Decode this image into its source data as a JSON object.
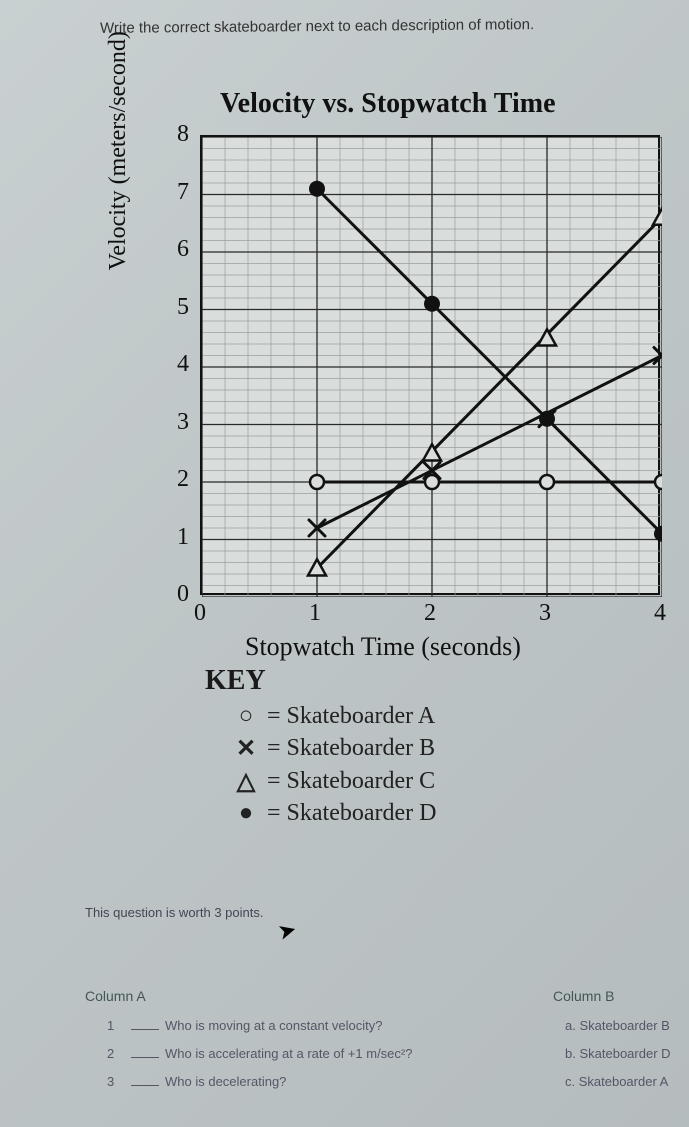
{
  "instruction": "Write the correct skateboarder next to each description of motion.",
  "chart": {
    "title": "Velocity vs. Stopwatch Time",
    "ylabel": "Velocity (meters/second)",
    "xlabel": "Stopwatch Time (seconds)",
    "xlim": [
      0,
      4
    ],
    "ylim": [
      0,
      8
    ],
    "xtick_step": 1,
    "ytick_step": 1,
    "minor_div": 5,
    "background_color": "#d9dddc",
    "grid_color_minor": "#9aa19e",
    "grid_color_major": "#2a2a2a",
    "border_color": "#111111",
    "line_color": "#111111",
    "line_width": 3,
    "series": [
      {
        "name": "Skateboarder A",
        "marker": "open-circle",
        "points": [
          [
            1,
            2
          ],
          [
            2,
            2
          ],
          [
            3,
            2
          ],
          [
            4,
            2
          ]
        ],
        "line_points": [
          [
            1,
            2
          ],
          [
            4,
            2
          ]
        ]
      },
      {
        "name": "Skateboarder B",
        "marker": "x",
        "points": [
          [
            1,
            1.2
          ],
          [
            2,
            2.2
          ],
          [
            3,
            3.1
          ],
          [
            4,
            4.2
          ]
        ],
        "line_points": [
          [
            1,
            1.2
          ],
          [
            4,
            4.2
          ]
        ]
      },
      {
        "name": "Skateboarder C",
        "marker": "triangle",
        "points": [
          [
            1,
            0.5
          ],
          [
            2,
            2.5
          ],
          [
            3,
            4.5
          ],
          [
            4,
            6.6
          ]
        ],
        "line_points": [
          [
            1,
            0.5
          ],
          [
            4,
            6.6
          ]
        ]
      },
      {
        "name": "Skateboarder D",
        "marker": "filled-circle",
        "points": [
          [
            1,
            7.1
          ],
          [
            2,
            5.1
          ],
          [
            3,
            3.1
          ],
          [
            4,
            1.1
          ]
        ],
        "line_points": [
          [
            1,
            7.1
          ],
          [
            4,
            1.1
          ]
        ]
      }
    ],
    "key_title": "KEY",
    "key": [
      {
        "symbol": "○",
        "label": "= Skateboarder A"
      },
      {
        "symbol": "✕",
        "label": "= Skateboarder B"
      },
      {
        "symbol": "△",
        "label": "= Skateboarder C"
      },
      {
        "symbol": "●",
        "label": "= Skateboarder D"
      }
    ]
  },
  "points_note": "This question is worth 3 points.",
  "columns": {
    "a_header": "Column A",
    "b_header": "Column B",
    "questions": [
      {
        "num": "1",
        "text": "Who is moving at a constant velocity?"
      },
      {
        "num": "2",
        "text": "Who is accelerating at a rate of +1 m/sec²?"
      },
      {
        "num": "3",
        "text": "Who is decelerating?"
      }
    ],
    "answers": [
      {
        "letter": "a.",
        "text": "Skateboarder B"
      },
      {
        "letter": "b.",
        "text": "Skateboarder D"
      },
      {
        "letter": "c.",
        "text": "Skateboarder A"
      }
    ]
  }
}
